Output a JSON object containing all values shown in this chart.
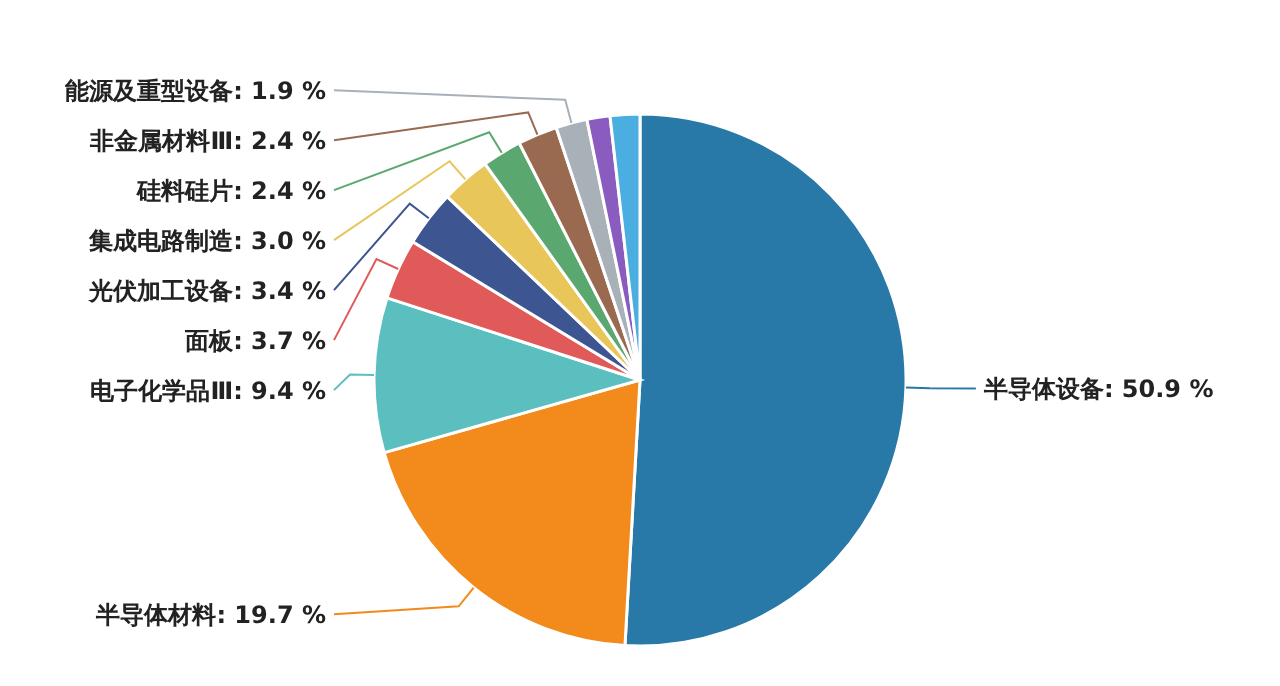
{
  "chart_data": {
    "type": "pie",
    "categories": [
      "半导体设备",
      "半导体材料",
      "电子化学品Ⅲ",
      "面板",
      "光伏加工设备",
      "集成电路制造",
      "硅料硅片",
      "非金属材料Ⅲ",
      "能源及重型设备",
      null,
      null
    ],
    "values": [
      50.9,
      19.7,
      9.4,
      3.7,
      3.4,
      3.0,
      2.4,
      2.4,
      1.9,
      1.4,
      1.8
    ],
    "value_labels": [
      "50.9 %",
      "19.7 %",
      "9.4 %",
      "3.7 %",
      "3.4 %",
      "3.0 %",
      "2.4 %",
      "2.4 %",
      "1.9 %",
      null,
      null
    ],
    "colors": [
      "#2878a8",
      "#f38a1c",
      "#5bbfbf",
      "#e05a5a",
      "#3d5590",
      "#e8c65a",
      "#5aa870",
      "#9a6a50",
      "#a8b0b8",
      "#8a5cc0",
      "#4aaee0"
    ]
  }
}
